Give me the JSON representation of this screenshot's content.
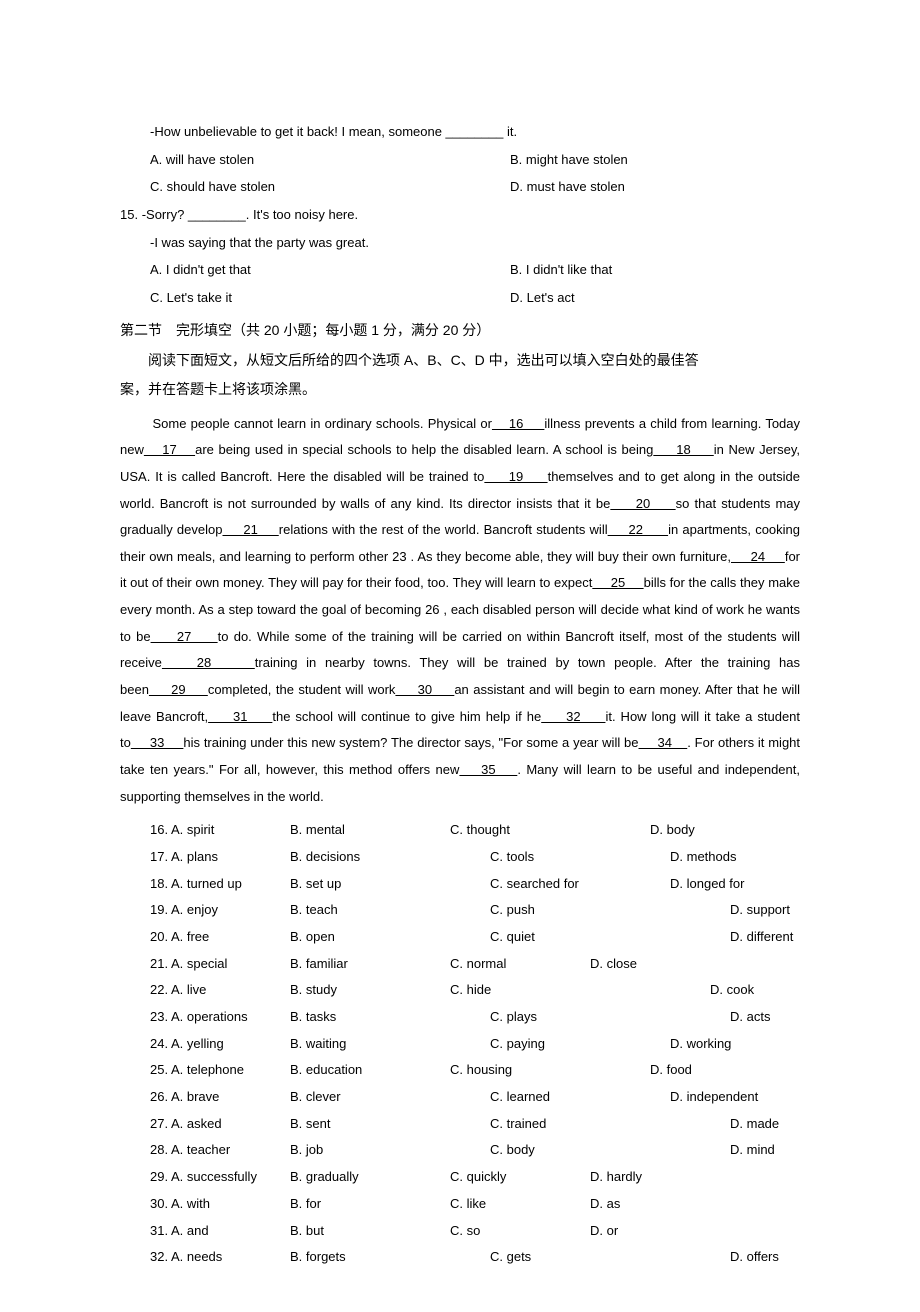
{
  "q14": {
    "line1": "-How unbelievable to get it back! I mean, someone ________  it.",
    "opts": {
      "a": "A. will have stolen",
      "b": "B. might have stolen",
      "c": "C. should have stolen",
      "d": "D. must have stolen"
    }
  },
  "q15": {
    "num": "15.",
    "line1": "-Sorry? ________. It's too noisy here.",
    "line2": "-I was saying that the party was great.",
    "opts": {
      "a": "A. I didn't get that",
      "b": "B. I didn't like that",
      "c": "C. Let's take it",
      "d": "D. Let's act"
    }
  },
  "section": {
    "title": "第二节 完形填空（共 20 小题；每小题 1 分，满分 20 分）",
    "instruction_l1": "阅读下面短文，从短文后所给的四个选项 A、B、C、D 中，选出可以填入空白处的最佳答",
    "instruction_l2": "案，并在答题卡上将该项涂黑。"
  },
  "passage": {
    "text": "Some people cannot learn in ordinary schools. Physical or    16     illness prevents a child from learning. Today new    17    are being used in special schools to help the disabled learn. A school is being     18     in New Jersey, USA. It is called Bancroft. Here the disabled will be trained to     19     themselves and to get along in the outside world. Bancroft is not surrounded by walls of any kind. Its director insists that it be     20     so that students may gradually develop     21     relations with the rest of the world. Bancroft students will     22      in apartments, cooking their own meals, and learning to perform other 23    . As they become able, they will buy their own furniture,     24     for it out of their own money. They will pay for their food, too. They will learn to expect     25     bills for the calls they make every month. As a step toward the goal of becoming 26    , each disabled person will decide what kind of work he wants to be     27     to do. While some of the training will be carried on within Bancroft itself, most of the students will receive    28     training in nearby towns. They will be trained by town people. After the training has been     29     completed, the student will work     30     an assistant and will begin to earn money. After that he will leave Bancroft,     31     the school will continue to give him help if he     32     it. How long will it take a student to     33     his training under this new system? The director says, \"For some a year will be     34    . For others it might take ten years.\" For all, however, this method offers new    35    . Many will learn to be useful and independent, supporting themselves in the world."
  },
  "cloze": [
    {
      "n": "16.",
      "a": "A. spirit",
      "b": "B. mental",
      "c": "C. thought",
      "d": "D. body"
    },
    {
      "n": "17.",
      "a": "A. plans",
      "b": "B. decisions",
      "c": "C. tools",
      "d": "D. methods"
    },
    {
      "n": "18.",
      "a": "A. turned up",
      "b": "B. set up",
      "c": "C. searched for",
      "d": "D. longed for"
    },
    {
      "n": "19.",
      "a": "A. enjoy",
      "b": "B. teach",
      "c": "C. push",
      "d": "D. support"
    },
    {
      "n": "20.",
      "a": "A. free",
      "b": "B. open",
      "c": "C. quiet",
      "d": "D. different"
    },
    {
      "n": "21.",
      "a": "A. special",
      "b": "B. familiar",
      "c": "C. normal",
      "d": "D. close"
    },
    {
      "n": "22.",
      "a": "A. live",
      "b": "B. study",
      "c": "C. hide",
      "d": "D. cook"
    },
    {
      "n": "23.",
      "a": "A. operations",
      "b": "B. tasks",
      "c": "C. plays",
      "d": "D. acts"
    },
    {
      "n": "24.",
      "a": "A. yelling",
      "b": "B. waiting",
      "c": "C. paying",
      "d": "D. working"
    },
    {
      "n": "25.",
      "a": "A. telephone",
      "b": "B. education",
      "c": "C. housing",
      "d": "D. food"
    },
    {
      "n": "26.",
      "a": "A. brave",
      "b": "B. clever",
      "c": "C. learned",
      "d": "D. independent"
    },
    {
      "n": "27.",
      "a": "A. asked",
      "b": "B. sent",
      "c": "C. trained",
      "d": "D. made"
    },
    {
      "n": "28.",
      "a": "A. teacher",
      "b": "B. job",
      "c": "C. body",
      "d": "D. mind"
    },
    {
      "n": "29.",
      "a": "A. successfully",
      "b": "B. gradually",
      "c": "C. quickly",
      "d": "D. hardly"
    },
    {
      "n": "30.",
      "a": "A. with",
      "b": "B. for",
      "c": "C. like",
      "d": "D. as"
    },
    {
      "n": "31.",
      "a": "A. and",
      "b": "B. but",
      "c": "C. so",
      "d": "D. or"
    },
    {
      "n": "32.",
      "a": "A. needs",
      "b": "B. forgets",
      "c": "C. gets",
      "d": "D. offers"
    }
  ],
  "layout": {
    "cloze_col_widths": {
      "num_a": 140,
      "b": 160,
      "c": 200
    },
    "shifted_c_rows": [
      1,
      2,
      3,
      4,
      7,
      8,
      10,
      11,
      12,
      16
    ],
    "wide_d_rows": [
      3,
      4,
      6,
      7,
      11,
      12,
      16
    ],
    "narrow_c_rows": [
      5,
      13,
      14,
      15
    ]
  },
  "colors": {
    "text": "#000000",
    "background": "#ffffff"
  }
}
